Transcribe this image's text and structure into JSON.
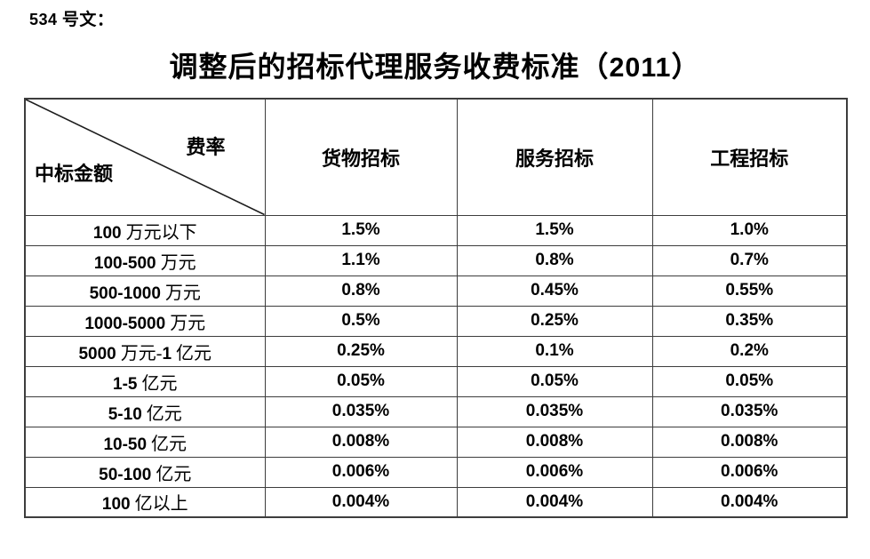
{
  "document": {
    "doc_number": "534 号文：",
    "title": "调整后的招标代理服务收费标准（2011）"
  },
  "table": {
    "corner": {
      "top_right_label": "费率",
      "bottom_left_label": "中标金额"
    },
    "column_headers": [
      "货物招标",
      "服务招标",
      "工程招标"
    ],
    "rows": [
      {
        "amount": "100 万元以下",
        "goods": "1.5%",
        "services": "1.5%",
        "engineering": "1.0%"
      },
      {
        "amount": "100-500 万元",
        "goods": "1.1%",
        "services": "0.8%",
        "engineering": "0.7%"
      },
      {
        "amount": "500-1000 万元",
        "goods": "0.8%",
        "services": "0.45%",
        "engineering": "0.55%"
      },
      {
        "amount": "1000-5000 万元",
        "goods": "0.5%",
        "services": "0.25%",
        "engineering": "0.35%"
      },
      {
        "amount": "5000 万元-1 亿元",
        "goods": "0.25%",
        "services": "0.1%",
        "engineering": "0.2%"
      },
      {
        "amount": "1-5 亿元",
        "goods": "0.05%",
        "services": "0.05%",
        "engineering": "0.05%"
      },
      {
        "amount": "5-10 亿元",
        "goods": "0.035%",
        "services": "0.035%",
        "engineering": "0.035%"
      },
      {
        "amount": "10-50 亿元",
        "goods": "0.008%",
        "services": "0.008%",
        "engineering": "0.008%"
      },
      {
        "amount": "50-100 亿元",
        "goods": "0.006%",
        "services": "0.006%",
        "engineering": "0.006%"
      },
      {
        "amount": "100 亿以上",
        "goods": "0.004%",
        "services": "0.004%",
        "engineering": "0.004%"
      }
    ]
  },
  "colors": {
    "text": "#000000",
    "border": "#3d3d3d",
    "background": "#ffffff"
  }
}
